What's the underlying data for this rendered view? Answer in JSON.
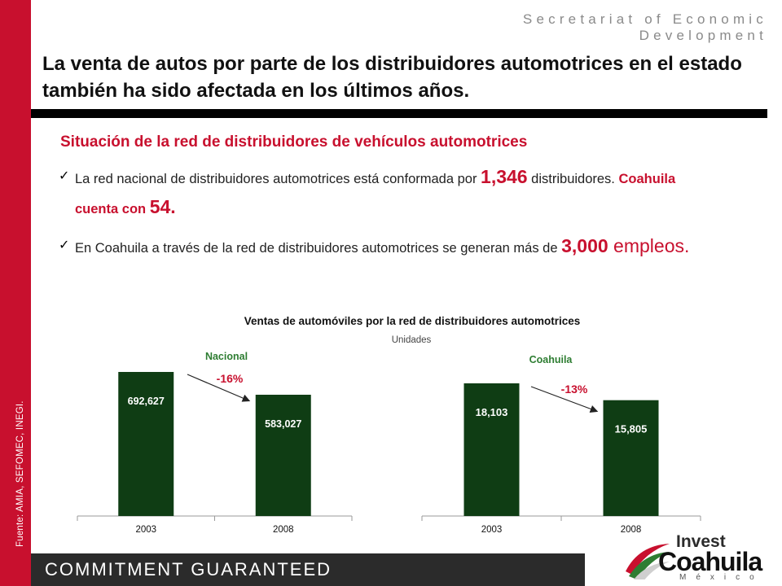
{
  "brand": {
    "line1": "Secretariat of Economic",
    "line2": "Development"
  },
  "headline": "La venta de autos por parte de los distribuidores automotrices en el estado también ha sido afectada en los últimos años.",
  "subheading": "Situación de la red de distribuidores de vehículos automotrices",
  "bullets": [
    {
      "check": "✓",
      "part1": "La red nacional de distribuidores automotrices está conformada por ",
      "highlight1": "1,346",
      "part2": " distribuidores. ",
      "highlight2": "Coahuila cuenta con ",
      "highlight3": "54."
    },
    {
      "check": "✓",
      "part1": "En Coahuila a través de la red de distribuidores automotrices se generan más de ",
      "highlight1": "3,000",
      "part2": " empleos."
    }
  ],
  "source": "Fuente: AMIA, SEFOMEC, INEGI.",
  "footer": "COMMITMENT GUARANTEED",
  "logo": {
    "invest": "Invest",
    "coahuila": "Coahuila",
    "mexico": "México"
  },
  "colors": {
    "accent": "#c8102e",
    "bar": "#0f3d14",
    "rule": "#000000"
  },
  "chart_data": {
    "title": "Ventas de automóviles por la red de distribuidores automotrices",
    "subtitle": "Unidades",
    "charts": [
      {
        "type": "bar",
        "label": "Nacional",
        "categories": [
          "2003",
          "2008"
        ],
        "values": [
          692627,
          583027
        ],
        "value_labels": [
          "692,627",
          "583,027"
        ],
        "change": "-16%"
      },
      {
        "type": "bar",
        "label": "Coahuila",
        "categories": [
          "2003",
          "2008"
        ],
        "values": [
          18103,
          15805
        ],
        "value_labels": [
          "18,103",
          "15,805"
        ],
        "change": "-13%"
      }
    ]
  }
}
